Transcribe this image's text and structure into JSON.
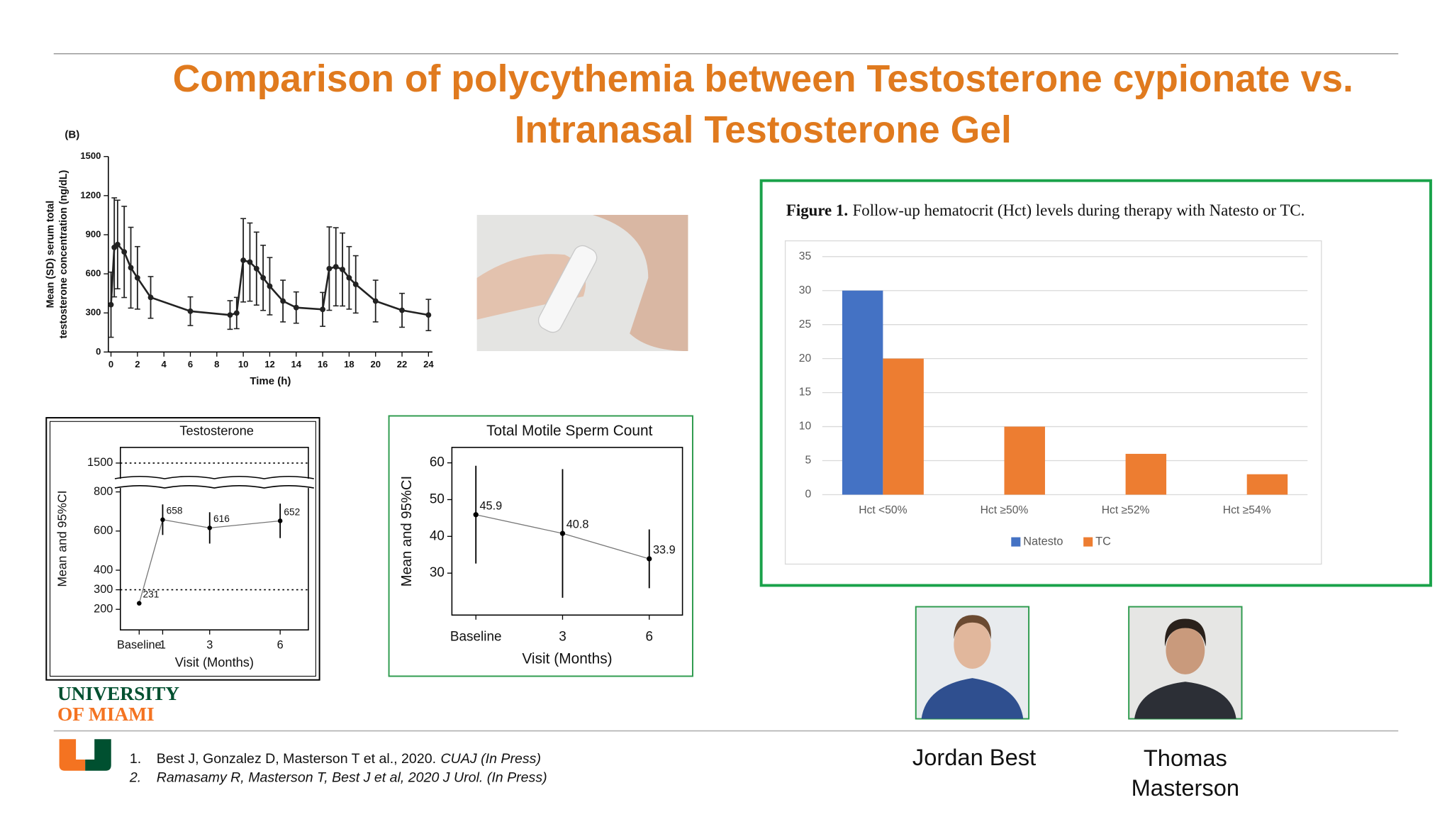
{
  "slide": {
    "title_lines": [
      "Comparison of polycythemia between Testosterone cypionate vs.",
      "Intranasal Testosterone Gel"
    ],
    "logo": [
      "UNIVERSITY",
      "OF MIAMI"
    ],
    "references": [
      {
        "number": "1.",
        "text": "Best J, Gonzalez D, Masterson T et al., 2020.",
        "journal": "CUAJ (In Press)"
      },
      {
        "number": "2.",
        "text": "Ramasamy R, Masterson T, Best J et al, 2020 J Urol. (In Press)"
      }
    ],
    "people": [
      "Jordan Best",
      "Thomas Masterson"
    ]
  },
  "chart_data": [
    {
      "type": "line",
      "title": "(B)",
      "xlabel": "Time (h)",
      "ylabel": [
        "Mean (SD) serum total",
        "testosterone concentration (ng/dL)"
      ],
      "x": [
        0,
        0.25,
        0.5,
        1,
        1.5,
        2,
        3,
        6,
        9,
        9.5,
        10,
        10.5,
        11,
        11.5,
        12,
        13,
        14,
        16,
        16.5,
        17,
        17.5,
        18,
        18.5,
        20,
        22,
        24
      ],
      "values": [
        363,
        803,
        825,
        768,
        647,
        569,
        419,
        313,
        284,
        299,
        704,
        690,
        640,
        569,
        505,
        391,
        341,
        327,
        640,
        654,
        633,
        569,
        519,
        391,
        320,
        284
      ],
      "errors": [
        250,
        380,
        340,
        350,
        310,
        240,
        160,
        110,
        110,
        120,
        320,
        300,
        280,
        250,
        220,
        160,
        120,
        130,
        320,
        300,
        280,
        240,
        220,
        160,
        130,
        120
      ],
      "color": "#222222",
      "xlim": [
        -0.2,
        24.3
      ],
      "xticks": [
        0,
        2,
        4,
        6,
        8,
        10,
        12,
        14,
        16,
        18,
        20,
        22,
        24
      ],
      "ylim": [
        0,
        1500
      ],
      "yticks": [
        0,
        300,
        600,
        900,
        1200,
        1500
      ]
    },
    {
      "type": "line",
      "title": "Testosterone",
      "xlabel": "Visit (Months)",
      "ylabel": "Mean and 95%CI",
      "x": [
        0,
        1,
        3,
        6
      ],
      "values": [
        231,
        658,
        616,
        652
      ],
      "errors": [
        8,
        78,
        80,
        88
      ],
      "color": "#000000",
      "xlim": [
        -0.8,
        7.2
      ],
      "xticks": [
        {
          "value": 0,
          "label": "Baseline"
        },
        1,
        3,
        6
      ],
      "ylim": [
        95,
        1580
      ],
      "ybreak": [
        820,
        1420
      ],
      "yticks": [
        200,
        300,
        400,
        600,
        800,
        1500
      ],
      "reference_lines": [
        300,
        1500
      ]
    },
    {
      "type": "line",
      "title": "Total Motile Sperm Count",
      "xlabel": "Visit (Months)",
      "ylabel": "Mean and 95%CI",
      "x": [
        0,
        3,
        6
      ],
      "values": [
        45.9,
        40.8,
        33.9
      ],
      "errors": [
        13.3,
        17.5,
        8
      ],
      "color": "#000000",
      "xlim": [
        -0.83,
        7.15
      ],
      "xticks": [
        {
          "value": 0,
          "label": "Baseline"
        },
        3,
        6
      ],
      "ylim": [
        18.6,
        64.2
      ],
      "yticks": [
        30,
        40,
        50,
        60
      ]
    },
    {
      "type": "bar",
      "title_prefix": "Figure 1.",
      "title": "Follow-up hematocrit (Hct) levels during therapy with Natesto or TC.",
      "categories": [
        "Hct <50%",
        "Hct ≥50%",
        "Hct ≥52%",
        "Hct ≥54%"
      ],
      "series": [
        {
          "name": "Natesto",
          "color": "#4472c4",
          "values": [
            30,
            0,
            0,
            0
          ]
        },
        {
          "name": "TC",
          "color": "#ed7d31",
          "values": [
            20,
            10,
            6,
            3
          ]
        }
      ],
      "ylim": [
        0,
        35
      ],
      "yticks": [
        0,
        5,
        10,
        15,
        20,
        25,
        30,
        35
      ],
      "grid": true,
      "legend": "bottom"
    }
  ]
}
